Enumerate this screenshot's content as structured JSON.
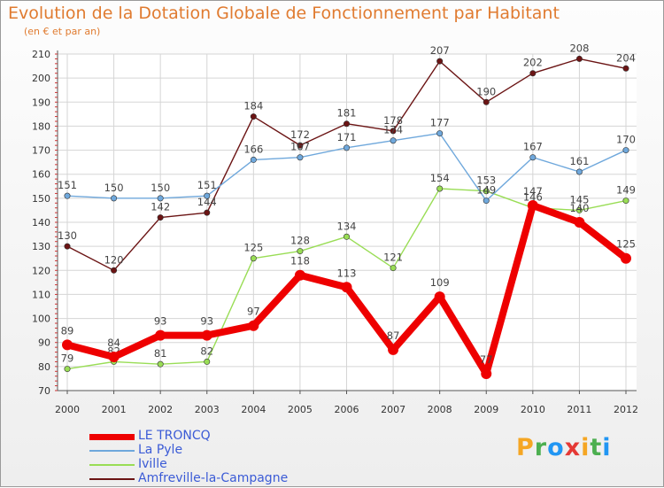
{
  "chart_data": {
    "type": "line",
    "title": "Evolution de la Dotation Globale de Fonctionnement par Habitant",
    "subtitle": "(en € et par an)",
    "xlabel": "",
    "ylabel": "",
    "ylim": [
      70,
      210
    ],
    "yticks": [
      70,
      80,
      90,
      100,
      110,
      120,
      130,
      140,
      150,
      160,
      170,
      180,
      190,
      200,
      210
    ],
    "categories": [
      "2000",
      "2001",
      "2002",
      "2003",
      "2004",
      "2005",
      "2006",
      "2007",
      "2008",
      "2009",
      "2010",
      "2011",
      "2012"
    ],
    "grid": true,
    "legend_position": "bottom-left",
    "series": [
      {
        "name": "Amfreville-la-Campagne",
        "color": "#6b1414",
        "values": [
          130,
          120,
          142,
          144,
          184,
          172,
          181,
          178,
          207,
          190,
          202,
          208,
          204
        ]
      },
      {
        "name": "Iville",
        "color": "#99dd55",
        "values": [
          79,
          82,
          81,
          82,
          125,
          128,
          134,
          121,
          154,
          153,
          146,
          145,
          149
        ]
      },
      {
        "name": "La Pyle",
        "color": "#6fa8dc",
        "values": [
          151,
          150,
          150,
          151,
          166,
          167,
          171,
          174,
          177,
          149,
          167,
          161,
          170
        ]
      },
      {
        "name": "LE TRONCQ",
        "color": "#ee0000",
        "values": [
          89,
          84,
          93,
          93,
          97,
          118,
          113,
          87,
          109,
          77,
          147,
          140,
          125
        ]
      }
    ],
    "legend_order": [
      "LE TRONCQ",
      "La Pyle",
      "Iville",
      "Amfreville-la-Campagne"
    ]
  },
  "watermark": {
    "text": "Proxiti",
    "letters": [
      {
        "ch": "P",
        "color": "#f5a623"
      },
      {
        "ch": "r",
        "color": "#4caf50"
      },
      {
        "ch": "o",
        "color": "#2196f3"
      },
      {
        "ch": "x",
        "color": "#e53935"
      },
      {
        "ch": "i",
        "color": "#f5a623"
      },
      {
        "ch": "t",
        "color": "#4caf50"
      },
      {
        "ch": "i",
        "color": "#2196f3"
      }
    ]
  }
}
